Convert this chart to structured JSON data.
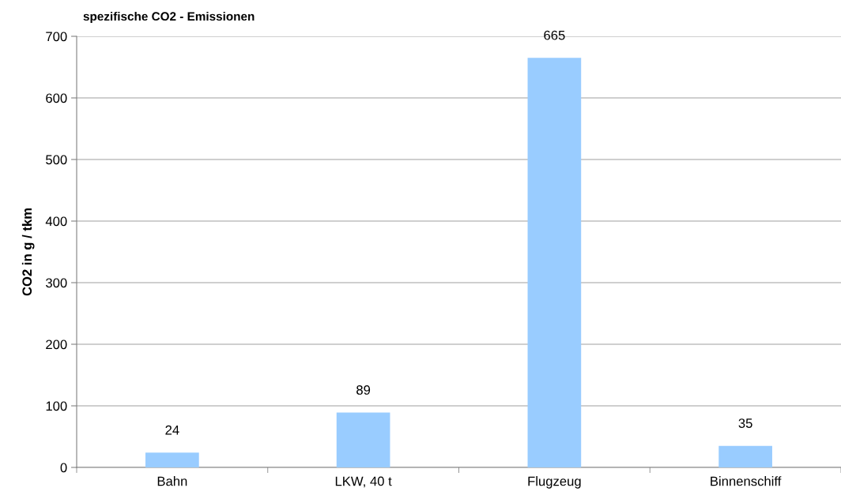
{
  "chart_data": {
    "type": "bar",
    "title": "spezifische CO2 - Emissionen",
    "ylabel": "CO2 in g / tkm",
    "categories": [
      "Bahn",
      "LKW, 40 t",
      "Flugzeug",
      "Binnenschiff"
    ],
    "values": [
      24,
      89,
      665,
      35
    ],
    "color": "#99ccff",
    "ylim": [
      0,
      700
    ],
    "yticks": [
      0,
      100,
      200,
      300,
      400,
      500,
      600,
      700
    ],
    "grid": "y",
    "data_labels": true
  }
}
